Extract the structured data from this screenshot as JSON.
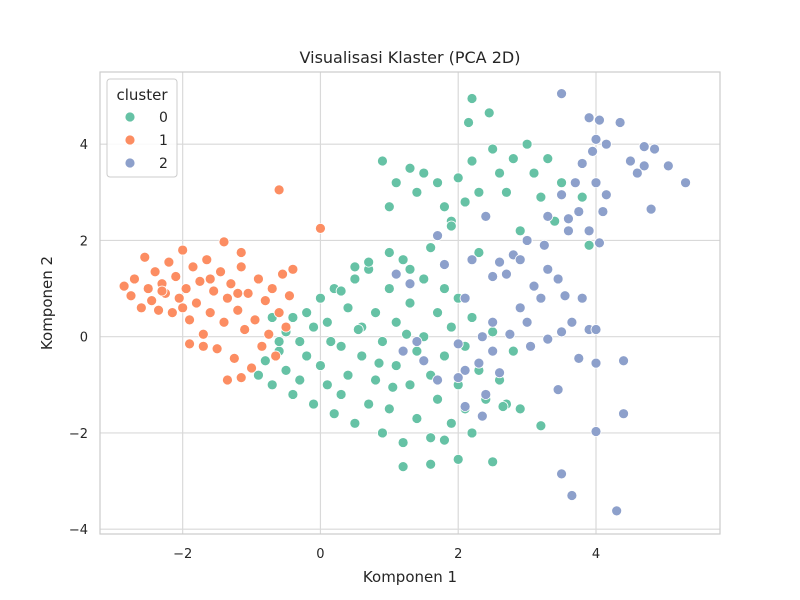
{
  "chart_data": {
    "type": "scatter",
    "title": "Visualisasi Klaster (PCA 2D)",
    "xlabel": "Komponen 1",
    "ylabel": "Komponen 2",
    "xlim": [
      -3.2,
      5.8
    ],
    "ylim": [
      -4.1,
      5.5
    ],
    "xticks": [
      -2,
      0,
      2,
      4
    ],
    "yticks": [
      -4,
      -2,
      0,
      2,
      4
    ],
    "xtick_labels": [
      "−2",
      "0",
      "2",
      "4"
    ],
    "ytick_labels": [
      "−4",
      "−2",
      "0",
      "2",
      "4"
    ],
    "grid": true,
    "legend": {
      "title": "cluster",
      "placement": "top-left",
      "entries": [
        "0",
        "1",
        "2"
      ]
    },
    "series": [
      {
        "name": "0",
        "color": "#66c2a5",
        "points": [
          [
            -0.9,
            -0.8
          ],
          [
            -0.8,
            -0.5
          ],
          [
            -0.7,
            -1.0
          ],
          [
            -0.6,
            -0.3
          ],
          [
            -0.5,
            0.1
          ],
          [
            -0.5,
            -0.7
          ],
          [
            -0.4,
            -1.2
          ],
          [
            -0.4,
            0.4
          ],
          [
            -0.3,
            -0.1
          ],
          [
            -0.3,
            -0.9
          ],
          [
            -0.2,
            0.5
          ],
          [
            -0.2,
            -0.4
          ],
          [
            -0.1,
            -1.4
          ],
          [
            -0.1,
            0.2
          ],
          [
            0.0,
            -0.6
          ],
          [
            0.0,
            0.8
          ],
          [
            0.1,
            -1.0
          ],
          [
            0.1,
            0.3
          ],
          [
            0.2,
            -1.6
          ],
          [
            0.2,
            1.0
          ],
          [
            0.3,
            -0.2
          ],
          [
            0.3,
            -1.2
          ],
          [
            0.4,
            0.6
          ],
          [
            0.4,
            -0.8
          ],
          [
            0.5,
            -1.8
          ],
          [
            0.5,
            1.2
          ],
          [
            0.6,
            -0.4
          ],
          [
            0.6,
            0.2
          ],
          [
            0.7,
            -1.4
          ],
          [
            0.7,
            1.4
          ],
          [
            0.8,
            -0.9
          ],
          [
            0.8,
            0.5
          ],
          [
            0.9,
            -2.0
          ],
          [
            0.9,
            -0.1
          ],
          [
            1.0,
            1.0
          ],
          [
            1.0,
            -1.5
          ],
          [
            1.1,
            0.3
          ],
          [
            1.1,
            -0.6
          ],
          [
            1.2,
            -2.2
          ],
          [
            1.2,
            1.6
          ],
          [
            1.3,
            -1.0
          ],
          [
            1.3,
            0.7
          ],
          [
            1.4,
            -0.3
          ],
          [
            1.4,
            -1.7
          ],
          [
            1.5,
            1.2
          ],
          [
            1.5,
            0.0
          ],
          [
            1.6,
            -0.8
          ],
          [
            1.6,
            -2.1
          ],
          [
            1.7,
            0.5
          ],
          [
            1.7,
            -1.3
          ],
          [
            1.8,
            1.0
          ],
          [
            1.8,
            -0.4
          ],
          [
            1.9,
            -1.8
          ],
          [
            1.9,
            0.2
          ],
          [
            2.0,
            -1.0
          ],
          [
            2.0,
            0.8
          ],
          [
            2.1,
            -0.2
          ],
          [
            2.1,
            -1.5
          ],
          [
            2.2,
            0.4
          ],
          [
            2.3,
            -0.7
          ],
          [
            2.4,
            -1.3
          ],
          [
            2.5,
            0.1
          ],
          [
            2.6,
            -0.9
          ],
          [
            2.7,
            -1.4
          ],
          [
            2.8,
            -0.3
          ],
          [
            1.2,
            -2.7
          ],
          [
            1.6,
            -2.65
          ],
          [
            2.0,
            -2.55
          ],
          [
            2.5,
            -2.6
          ],
          [
            3.2,
            -1.85
          ],
          [
            2.9,
            -1.5
          ],
          [
            0.9,
            3.65
          ],
          [
            1.0,
            2.7
          ],
          [
            1.1,
            3.2
          ],
          [
            1.3,
            3.5
          ],
          [
            1.4,
            3.0
          ],
          [
            1.5,
            3.4
          ],
          [
            1.7,
            3.2
          ],
          [
            1.8,
            2.7
          ],
          [
            1.9,
            2.4
          ],
          [
            2.0,
            3.3
          ],
          [
            2.1,
            2.8
          ],
          [
            2.2,
            3.65
          ],
          [
            2.3,
            3.0
          ],
          [
            2.4,
            2.5
          ],
          [
            2.5,
            3.9
          ],
          [
            2.6,
            3.4
          ],
          [
            2.7,
            3.0
          ],
          [
            2.8,
            3.7
          ],
          [
            2.9,
            2.2
          ],
          [
            3.0,
            4.0
          ],
          [
            3.1,
            3.4
          ],
          [
            3.2,
            2.9
          ],
          [
            3.3,
            3.7
          ],
          [
            3.4,
            2.4
          ],
          [
            3.5,
            3.2
          ],
          [
            3.6,
            2.2
          ],
          [
            3.8,
            2.9
          ],
          [
            2.2,
            4.95
          ],
          [
            2.45,
            4.65
          ],
          [
            2.15,
            4.45
          ],
          [
            -0.6,
            -0.1
          ],
          [
            -0.7,
            0.4
          ],
          [
            0.5,
            1.45
          ],
          [
            0.7,
            1.55
          ],
          [
            1.0,
            1.75
          ],
          [
            1.3,
            1.4
          ],
          [
            1.6,
            1.85
          ],
          [
            1.9,
            2.3
          ],
          [
            2.3,
            1.75
          ],
          [
            3.9,
            1.9
          ],
          [
            2.65,
            -1.45
          ],
          [
            2.2,
            -2.0
          ],
          [
            1.8,
            -2.15
          ],
          [
            0.3,
            0.95
          ],
          [
            0.15,
            -0.1
          ],
          [
            0.55,
            0.15
          ],
          [
            0.85,
            -0.55
          ],
          [
            1.05,
            -1.05
          ],
          [
            1.25,
            0.05
          ]
        ]
      },
      {
        "name": "1",
        "color": "#fc8d62",
        "points": [
          [
            -2.85,
            1.05
          ],
          [
            -2.75,
            0.85
          ],
          [
            -2.7,
            1.2
          ],
          [
            -2.6,
            0.6
          ],
          [
            -2.55,
            1.65
          ],
          [
            -2.5,
            1.0
          ],
          [
            -2.45,
            0.75
          ],
          [
            -2.4,
            1.35
          ],
          [
            -2.35,
            0.55
          ],
          [
            -2.3,
            1.1
          ],
          [
            -2.25,
            0.9
          ],
          [
            -2.2,
            1.55
          ],
          [
            -2.15,
            0.5
          ],
          [
            -2.1,
            1.25
          ],
          [
            -2.05,
            0.8
          ],
          [
            -2.0,
            1.8
          ],
          [
            -1.95,
            1.0
          ],
          [
            -1.9,
            0.35
          ],
          [
            -1.85,
            1.45
          ],
          [
            -1.8,
            0.7
          ],
          [
            -1.75,
            1.15
          ],
          [
            -1.7,
            0.05
          ],
          [
            -1.65,
            1.6
          ],
          [
            -1.6,
            0.5
          ],
          [
            -1.55,
            0.95
          ],
          [
            -1.5,
            -0.25
          ],
          [
            -1.45,
            1.35
          ],
          [
            -1.4,
            0.3
          ],
          [
            -1.35,
            0.8
          ],
          [
            -1.3,
            1.1
          ],
          [
            -1.25,
            -0.45
          ],
          [
            -1.2,
            0.55
          ],
          [
            -1.15,
            1.45
          ],
          [
            -1.1,
            0.15
          ],
          [
            -1.05,
            0.9
          ],
          [
            -1.0,
            -0.65
          ],
          [
            -0.95,
            0.35
          ],
          [
            -0.9,
            1.2
          ],
          [
            -0.85,
            -0.2
          ],
          [
            -0.8,
            0.75
          ],
          [
            -0.75,
            0.05
          ],
          [
            -0.7,
            1.0
          ],
          [
            -0.65,
            -0.4
          ],
          [
            -0.6,
            0.5
          ],
          [
            -0.55,
            1.3
          ],
          [
            -0.5,
            0.2
          ],
          [
            -0.45,
            0.85
          ],
          [
            -0.4,
            1.4
          ],
          [
            -1.9,
            -0.15
          ],
          [
            -1.7,
            -0.2
          ],
          [
            -1.35,
            -0.9
          ],
          [
            -1.15,
            -0.85
          ],
          [
            -1.4,
            1.97
          ],
          [
            -1.15,
            1.75
          ],
          [
            -0.6,
            3.05
          ],
          [
            0.0,
            2.25
          ],
          [
            -2.3,
            0.95
          ],
          [
            -2.0,
            0.6
          ],
          [
            -1.6,
            1.2
          ],
          [
            -1.2,
            0.9
          ]
        ]
      },
      {
        "name": "2",
        "color": "#8da0cb",
        "points": [
          [
            3.5,
            5.05
          ],
          [
            3.9,
            4.55
          ],
          [
            4.05,
            4.5
          ],
          [
            4.35,
            4.45
          ],
          [
            4.0,
            4.1
          ],
          [
            3.95,
            3.85
          ],
          [
            4.15,
            4.0
          ],
          [
            3.8,
            3.6
          ],
          [
            4.5,
            3.65
          ],
          [
            4.7,
            3.95
          ],
          [
            4.85,
            3.9
          ],
          [
            4.7,
            3.55
          ],
          [
            4.6,
            3.4
          ],
          [
            4.0,
            3.2
          ],
          [
            3.7,
            3.2
          ],
          [
            5.05,
            3.55
          ],
          [
            5.3,
            3.2
          ],
          [
            3.5,
            2.95
          ],
          [
            4.15,
            2.95
          ],
          [
            3.75,
            2.6
          ],
          [
            4.1,
            2.6
          ],
          [
            3.6,
            2.45
          ],
          [
            4.8,
            2.65
          ],
          [
            3.3,
            2.5
          ],
          [
            3.9,
            2.2
          ],
          [
            3.6,
            2.2
          ],
          [
            4.05,
            1.95
          ],
          [
            3.25,
            1.9
          ],
          [
            3.0,
            2.0
          ],
          [
            2.8,
            1.7
          ],
          [
            2.6,
            1.55
          ],
          [
            2.7,
            1.3
          ],
          [
            3.3,
            1.4
          ],
          [
            3.1,
            1.05
          ],
          [
            3.45,
            1.2
          ],
          [
            3.2,
            0.8
          ],
          [
            3.55,
            0.85
          ],
          [
            2.9,
            0.6
          ],
          [
            3.8,
            0.8
          ],
          [
            2.5,
            0.3
          ],
          [
            3.0,
            0.3
          ],
          [
            3.65,
            0.3
          ],
          [
            2.35,
            0.0
          ],
          [
            2.75,
            0.05
          ],
          [
            3.5,
            0.1
          ],
          [
            3.9,
            0.15
          ],
          [
            4.0,
            0.15
          ],
          [
            3.3,
            -0.05
          ],
          [
            2.0,
            -0.15
          ],
          [
            2.5,
            -0.3
          ],
          [
            3.05,
            -0.2
          ],
          [
            3.75,
            -0.45
          ],
          [
            4.4,
            -0.5
          ],
          [
            4.0,
            -0.55
          ],
          [
            2.1,
            -0.7
          ],
          [
            2.6,
            -0.75
          ],
          [
            1.5,
            -0.5
          ],
          [
            1.7,
            -0.9
          ],
          [
            2.0,
            -0.85
          ],
          [
            2.3,
            -0.55
          ],
          [
            2.1,
            -1.45
          ],
          [
            2.4,
            -1.2
          ],
          [
            2.35,
            -1.65
          ],
          [
            3.45,
            -1.1
          ],
          [
            4.4,
            -1.6
          ],
          [
            4.0,
            -1.97
          ],
          [
            3.5,
            -2.85
          ],
          [
            3.65,
            -3.3
          ],
          [
            4.3,
            -3.62
          ],
          [
            1.2,
            -0.3
          ],
          [
            1.4,
            -0.1
          ],
          [
            1.1,
            1.3
          ],
          [
            1.3,
            1.1
          ],
          [
            1.8,
            1.5
          ],
          [
            2.2,
            1.6
          ],
          [
            2.5,
            1.25
          ],
          [
            2.9,
            1.6
          ],
          [
            2.4,
            2.5
          ],
          [
            1.7,
            2.1
          ],
          [
            2.1,
            0.8
          ]
        ]
      }
    ]
  }
}
